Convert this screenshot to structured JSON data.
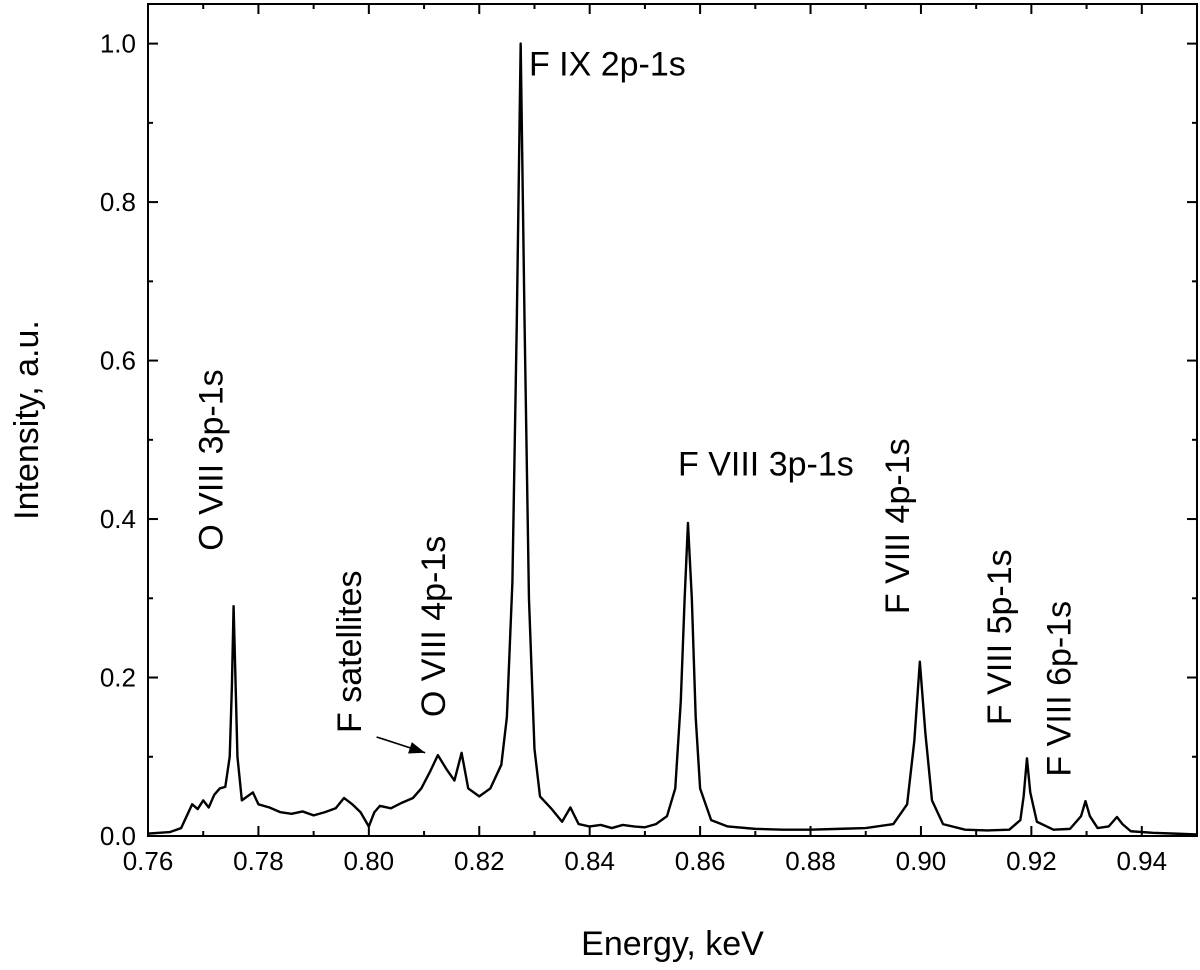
{
  "chart_data": {
    "type": "line",
    "title": "",
    "xlabel": "Energy, keV",
    "ylabel": "Intensity, a.u.",
    "xlim": [
      0.76,
      0.95
    ],
    "ylim": [
      0.0,
      1.05
    ],
    "x_ticks": [
      0.76,
      0.78,
      0.8,
      0.82,
      0.84,
      0.86,
      0.88,
      0.9,
      0.92,
      0.94
    ],
    "x_tick_labels": [
      "0.76",
      "0.78",
      "0.80",
      "0.82",
      "0.84",
      "0.86",
      "0.88",
      "0.90",
      "0.92",
      "0.94"
    ],
    "y_ticks": [
      0.0,
      0.2,
      0.4,
      0.6,
      0.8,
      1.0
    ],
    "y_tick_labels": [
      "0.0",
      "0.2",
      "0.4",
      "0.6",
      "0.8",
      "1.0"
    ],
    "grid": false,
    "line_color": "#000000",
    "peaks": [
      {
        "label": "O VIII 3p-1s",
        "x": 0.7755,
        "y": 0.29
      },
      {
        "label": "O VIII 4p-1s",
        "x": 0.8168,
        "y": 0.105
      },
      {
        "label": "F IX 2p-1s",
        "x": 0.8275,
        "y": 1.0
      },
      {
        "label": "F VIII 3p-1s",
        "x": 0.8578,
        "y": 0.395
      },
      {
        "label": "F VIII 4p-1s",
        "x": 0.8998,
        "y": 0.22
      },
      {
        "label": "F VIII 5p-1s",
        "x": 0.9192,
        "y": 0.098
      },
      {
        "label": "F VIII 6p-1s",
        "x": 0.9298,
        "y": 0.044
      }
    ],
    "annotations": [
      {
        "text": "F IX 2p-1s",
        "x": 0.829,
        "y": 0.96,
        "rotate": 0
      },
      {
        "text": "F VIII 3p-1s",
        "x": 0.856,
        "y": 0.455,
        "rotate": 0
      },
      {
        "text": "O VIII 3p-1s",
        "x": 0.7735,
        "y": 0.36,
        "rotate": -90
      },
      {
        "text": "F satellites",
        "x": 0.7986,
        "y": 0.13,
        "rotate": -90
      },
      {
        "text": "O VIII 4p-1s",
        "x": 0.8138,
        "y": 0.15,
        "rotate": -90
      },
      {
        "text": "F VIII 4p-1s",
        "x": 0.8978,
        "y": 0.28,
        "rotate": -90
      },
      {
        "text": "F VIII 5p-1s",
        "x": 0.9163,
        "y": 0.14,
        "rotate": -90
      },
      {
        "text": "F VIII 6p-1s",
        "x": 0.9271,
        "y": 0.075,
        "rotate": -90
      }
    ],
    "arrow": {
      "from": [
        0.8014,
        0.125
      ],
      "to": [
        0.8102,
        0.105
      ]
    },
    "series": [
      {
        "values": [
          [
            0.76,
            0.003
          ],
          [
            0.762,
            0.004
          ],
          [
            0.764,
            0.005
          ],
          [
            0.766,
            0.01
          ],
          [
            0.767,
            0.025
          ],
          [
            0.768,
            0.04
          ],
          [
            0.769,
            0.034
          ],
          [
            0.77,
            0.045
          ],
          [
            0.771,
            0.036
          ],
          [
            0.772,
            0.052
          ],
          [
            0.773,
            0.06
          ],
          [
            0.774,
            0.062
          ],
          [
            0.7748,
            0.1
          ],
          [
            0.7752,
            0.19
          ],
          [
            0.7755,
            0.29
          ],
          [
            0.7758,
            0.21
          ],
          [
            0.7762,
            0.1
          ],
          [
            0.777,
            0.045
          ],
          [
            0.778,
            0.05
          ],
          [
            0.779,
            0.055
          ],
          [
            0.78,
            0.04
          ],
          [
            0.782,
            0.036
          ],
          [
            0.784,
            0.03
          ],
          [
            0.786,
            0.028
          ],
          [
            0.788,
            0.031
          ],
          [
            0.79,
            0.026
          ],
          [
            0.792,
            0.03
          ],
          [
            0.794,
            0.035
          ],
          [
            0.7955,
            0.048
          ],
          [
            0.797,
            0.04
          ],
          [
            0.7985,
            0.03
          ],
          [
            0.8,
            0.012
          ],
          [
            0.801,
            0.03
          ],
          [
            0.802,
            0.038
          ],
          [
            0.804,
            0.035
          ],
          [
            0.806,
            0.042
          ],
          [
            0.808,
            0.048
          ],
          [
            0.8095,
            0.06
          ],
          [
            0.811,
            0.08
          ],
          [
            0.8125,
            0.102
          ],
          [
            0.814,
            0.085
          ],
          [
            0.8155,
            0.07
          ],
          [
            0.8168,
            0.105
          ],
          [
            0.818,
            0.06
          ],
          [
            0.82,
            0.05
          ],
          [
            0.822,
            0.06
          ],
          [
            0.824,
            0.09
          ],
          [
            0.825,
            0.15
          ],
          [
            0.826,
            0.32
          ],
          [
            0.8268,
            0.65
          ],
          [
            0.8275,
            1.0
          ],
          [
            0.8282,
            0.65
          ],
          [
            0.829,
            0.3
          ],
          [
            0.83,
            0.11
          ],
          [
            0.831,
            0.05
          ],
          [
            0.833,
            0.035
          ],
          [
            0.835,
            0.018
          ],
          [
            0.8365,
            0.036
          ],
          [
            0.838,
            0.015
          ],
          [
            0.84,
            0.012
          ],
          [
            0.842,
            0.014
          ],
          [
            0.844,
            0.01
          ],
          [
            0.846,
            0.014
          ],
          [
            0.848,
            0.012
          ],
          [
            0.85,
            0.011
          ],
          [
            0.852,
            0.015
          ],
          [
            0.854,
            0.025
          ],
          [
            0.8555,
            0.06
          ],
          [
            0.8565,
            0.17
          ],
          [
            0.8572,
            0.3
          ],
          [
            0.8578,
            0.395
          ],
          [
            0.8585,
            0.3
          ],
          [
            0.8592,
            0.15
          ],
          [
            0.86,
            0.06
          ],
          [
            0.862,
            0.02
          ],
          [
            0.865,
            0.012
          ],
          [
            0.87,
            0.009
          ],
          [
            0.875,
            0.008
          ],
          [
            0.88,
            0.008
          ],
          [
            0.885,
            0.009
          ],
          [
            0.89,
            0.01
          ],
          [
            0.895,
            0.015
          ],
          [
            0.8975,
            0.04
          ],
          [
            0.8988,
            0.12
          ],
          [
            0.8998,
            0.22
          ],
          [
            0.9008,
            0.13
          ],
          [
            0.902,
            0.045
          ],
          [
            0.904,
            0.015
          ],
          [
            0.908,
            0.008
          ],
          [
            0.912,
            0.007
          ],
          [
            0.916,
            0.008
          ],
          [
            0.918,
            0.02
          ],
          [
            0.9186,
            0.05
          ],
          [
            0.9192,
            0.098
          ],
          [
            0.9198,
            0.055
          ],
          [
            0.921,
            0.018
          ],
          [
            0.924,
            0.008
          ],
          [
            0.927,
            0.009
          ],
          [
            0.929,
            0.025
          ],
          [
            0.9298,
            0.044
          ],
          [
            0.9306,
            0.025
          ],
          [
            0.932,
            0.01
          ],
          [
            0.934,
            0.012
          ],
          [
            0.9355,
            0.024
          ],
          [
            0.9365,
            0.015
          ],
          [
            0.938,
            0.006
          ],
          [
            0.942,
            0.004
          ],
          [
            0.946,
            0.003
          ],
          [
            0.95,
            0.002
          ]
        ]
      }
    ]
  }
}
